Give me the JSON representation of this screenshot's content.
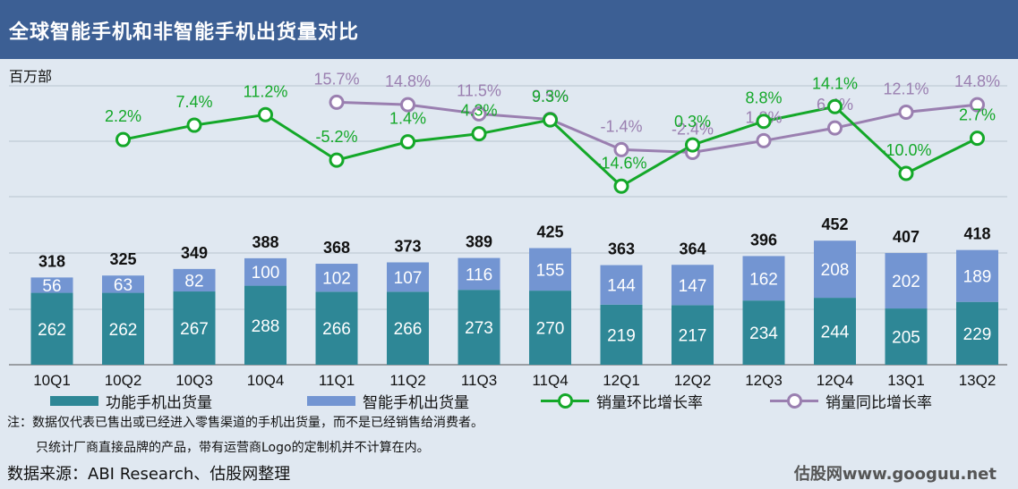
{
  "header": {
    "title": "全球智能手机和非智能手机出货量对比"
  },
  "chart_data": {
    "type": "bar",
    "unit_label": "百万部",
    "categories": [
      "10Q1",
      "10Q2",
      "10Q3",
      "10Q4",
      "11Q1",
      "11Q2",
      "11Q3",
      "11Q4",
      "12Q1",
      "12Q2",
      "12Q3",
      "12Q4",
      "13Q1",
      "13Q2"
    ],
    "bars": [
      {
        "name": "功能手机出货量",
        "color": "#2e8796",
        "values": [
          262,
          262,
          267,
          288,
          266,
          266,
          273,
          270,
          219,
          217,
          234,
          244,
          205,
          229
        ]
      },
      {
        "name": "智能手机出货量",
        "color": "#7395d2",
        "values": [
          56,
          63,
          82,
          100,
          102,
          107,
          116,
          155,
          144,
          147,
          162,
          208,
          202,
          189
        ]
      }
    ],
    "totals": [
      318,
      325,
      349,
      388,
      368,
      373,
      389,
      425,
      363,
      364,
      396,
      452,
      407,
      418
    ],
    "lines": [
      {
        "name": "销量环比增长率",
        "color": "#14a829",
        "values": [
          null,
          2.2,
          7.4,
          11.2,
          -5.2,
          1.4,
          4.3,
          9.3,
          -14.6,
          0.3,
          8.8,
          14.1,
          -10.0,
          2.7
        ],
        "labels": [
          "",
          "2.2%",
          "7.4%",
          "11.2%",
          "-5.2%",
          "1.4%",
          "4.3%",
          "9.3%",
          "-14.6%",
          "0.3%",
          "8.8%",
          "14.1%",
          "-10.0%",
          "2.7%"
        ]
      },
      {
        "name": "销量同比增长率",
        "color": "#9a7fb0",
        "values": [
          null,
          null,
          null,
          null,
          15.7,
          14.8,
          11.5,
          9.5,
          -1.4,
          -2.4,
          1.8,
          6.4,
          12.1,
          14.8
        ],
        "labels": [
          "",
          "",
          "",
          "",
          "15.7%",
          "14.8%",
          "11.5%",
          "9.5%",
          "-1.4%",
          "-2.4%",
          "1.8%",
          "6.4%",
          "12.1%",
          "14.8%"
        ]
      }
    ]
  },
  "notes": {
    "line1": "注：数据仅代表已售出或已经进入零售渠道的手机出货量，而不是已经销售给消费者。",
    "line2": "只统计厂商直接品牌的产品，带有运营商Logo的定制机并不计算在内。"
  },
  "source": "数据来源：ABI Research、估股网整理",
  "watermark": "估股网www.googuu.net"
}
